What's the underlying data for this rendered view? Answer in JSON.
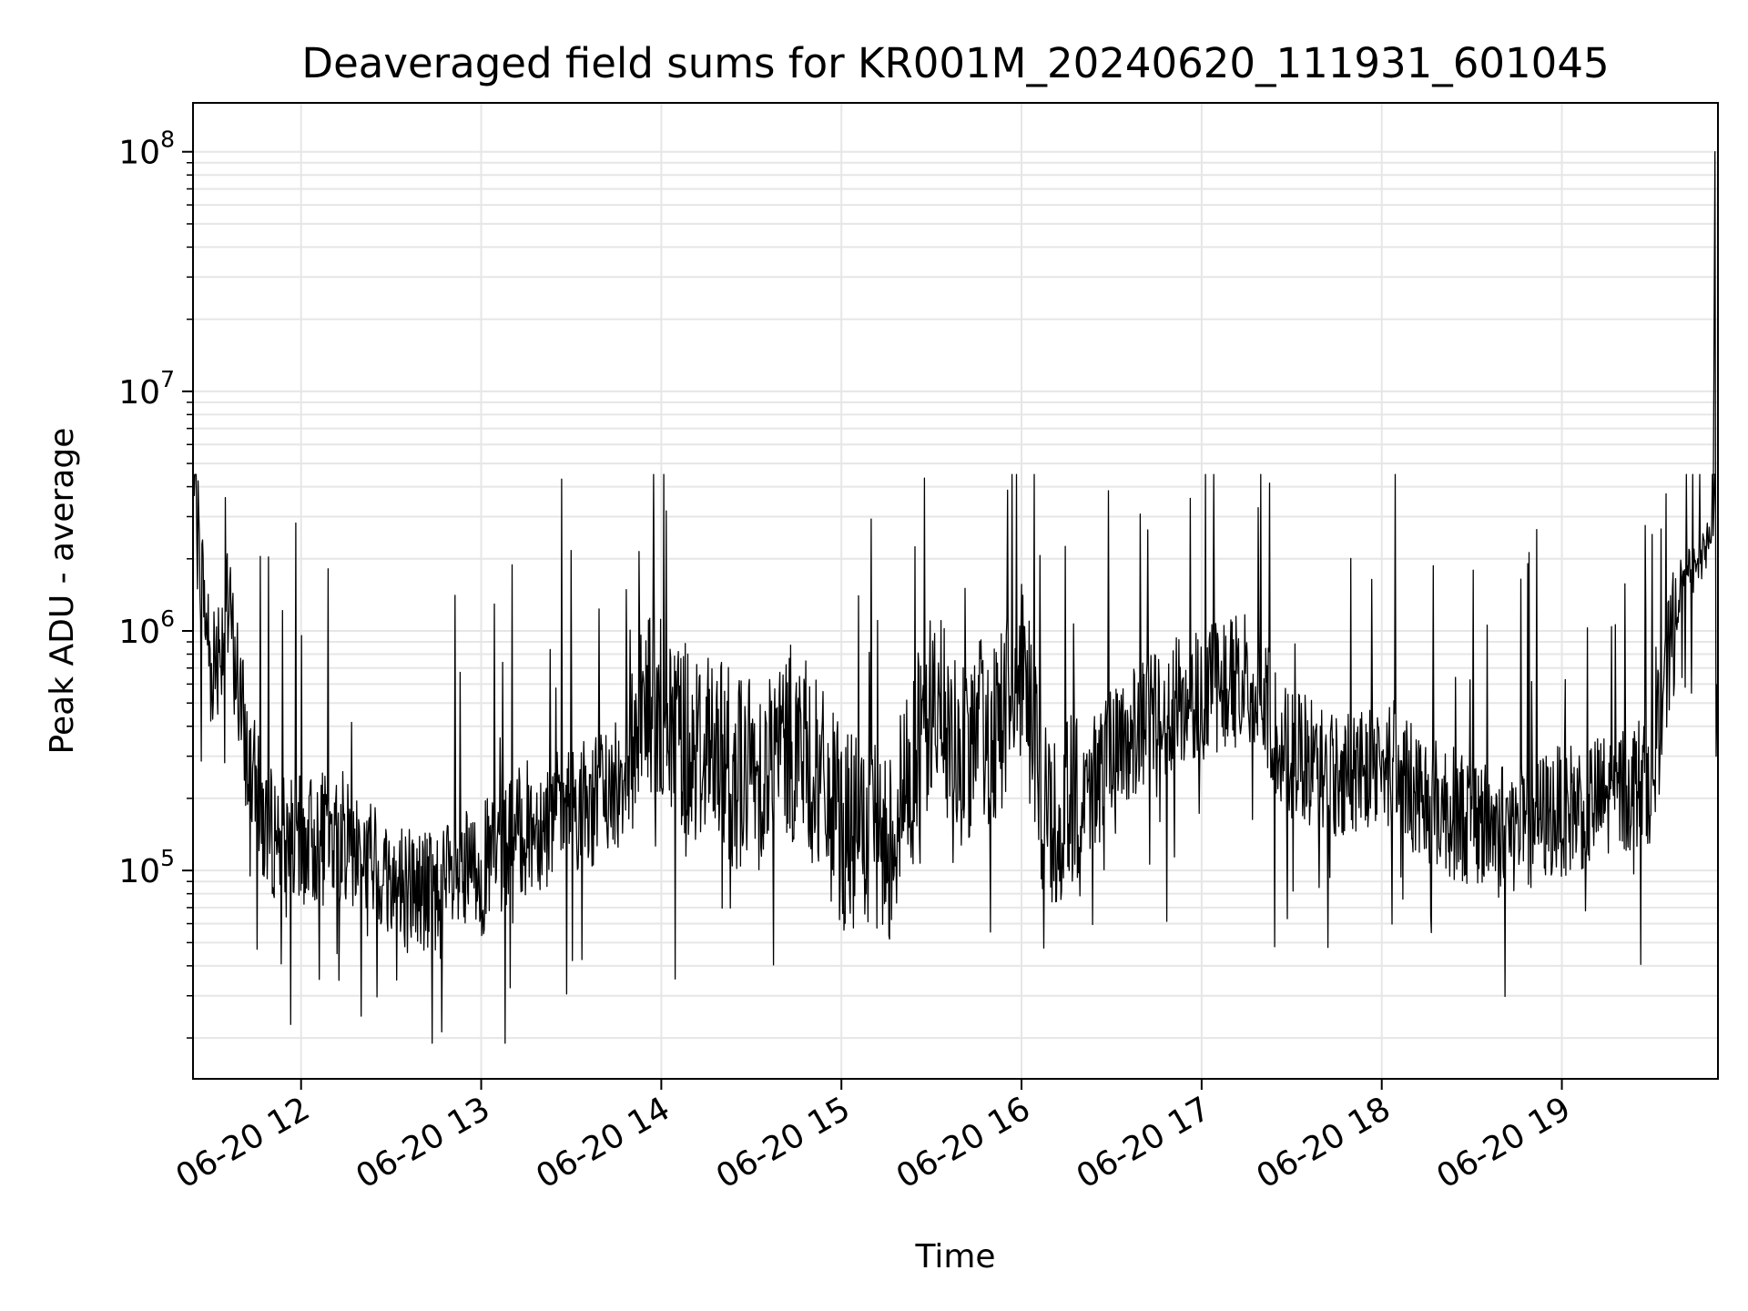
{
  "chart_data": {
    "type": "line",
    "title": "Deaveraged field sums for KR001M_20240620_111931_601045",
    "xlabel": "Time",
    "ylabel": "Peak ADU - average",
    "yscale": "log",
    "ylim": [
      13500,
      160000000
    ],
    "xlim": [
      "06-20 11:24",
      "06-20 19:52"
    ],
    "grid": true,
    "x_ticks": [
      "06-20 12",
      "06-20 13",
      "06-20 14",
      "06-20 15",
      "06-20 16",
      "06-20 17",
      "06-20 18",
      "06-20 19"
    ],
    "y_ticks": [
      {
        "base": "10",
        "exp": "5",
        "value": 100000
      },
      {
        "base": "10",
        "exp": "6",
        "value": 1000000
      },
      {
        "base": "10",
        "exp": "7",
        "value": 10000000
      },
      {
        "base": "10",
        "exp": "8",
        "value": 100000000
      }
    ],
    "line_color": "#000000",
    "grid_color": "#e6e6e6",
    "series": [
      {
        "x": [
          "06-20 11:24",
          "06-20 11:30",
          "06-20 11:36",
          "06-20 11:42",
          "06-20 11:48",
          "06-20 12:00",
          "06-20 12:15",
          "06-20 12:30",
          "06-20 12:45",
          "06-20 13:00",
          "06-20 13:15",
          "06-20 13:30",
          "06-20 13:45",
          "06-20 13:55",
          "06-20 14:05",
          "06-20 14:15",
          "06-20 14:30",
          "06-20 14:45",
          "06-20 15:00",
          "06-20 15:15",
          "06-20 15:30",
          "06-20 15:40",
          "06-20 15:50",
          "06-20 16:00",
          "06-20 16:10",
          "06-20 16:20",
          "06-20 16:30",
          "06-20 16:45",
          "06-20 17:00",
          "06-20 17:15",
          "06-20 17:30",
          "06-20 17:45",
          "06-20 18:00",
          "06-20 18:15",
          "06-20 18:30",
          "06-20 18:45",
          "06-20 19:00",
          "06-20 19:15",
          "06-20 19:30",
          "06-20 19:40",
          "06-20 19:45",
          "06-20 19:50",
          "06-20 19:51",
          "06-20 19:52"
        ],
        "y": [
          4000000,
          700000,
          1200000,
          300000,
          150000,
          130000,
          140000,
          90000,
          80000,
          100000,
          150000,
          180000,
          220000,
          500000,
          400000,
          300000,
          250000,
          350000,
          150000,
          120000,
          500000,
          300000,
          400000,
          600000,
          150000,
          200000,
          300000,
          450000,
          550000,
          650000,
          300000,
          250000,
          300000,
          200000,
          160000,
          150000,
          180000,
          200000,
          250000,
          1700000,
          1800000,
          2500000,
          100000000,
          300000
        ]
      }
    ]
  }
}
